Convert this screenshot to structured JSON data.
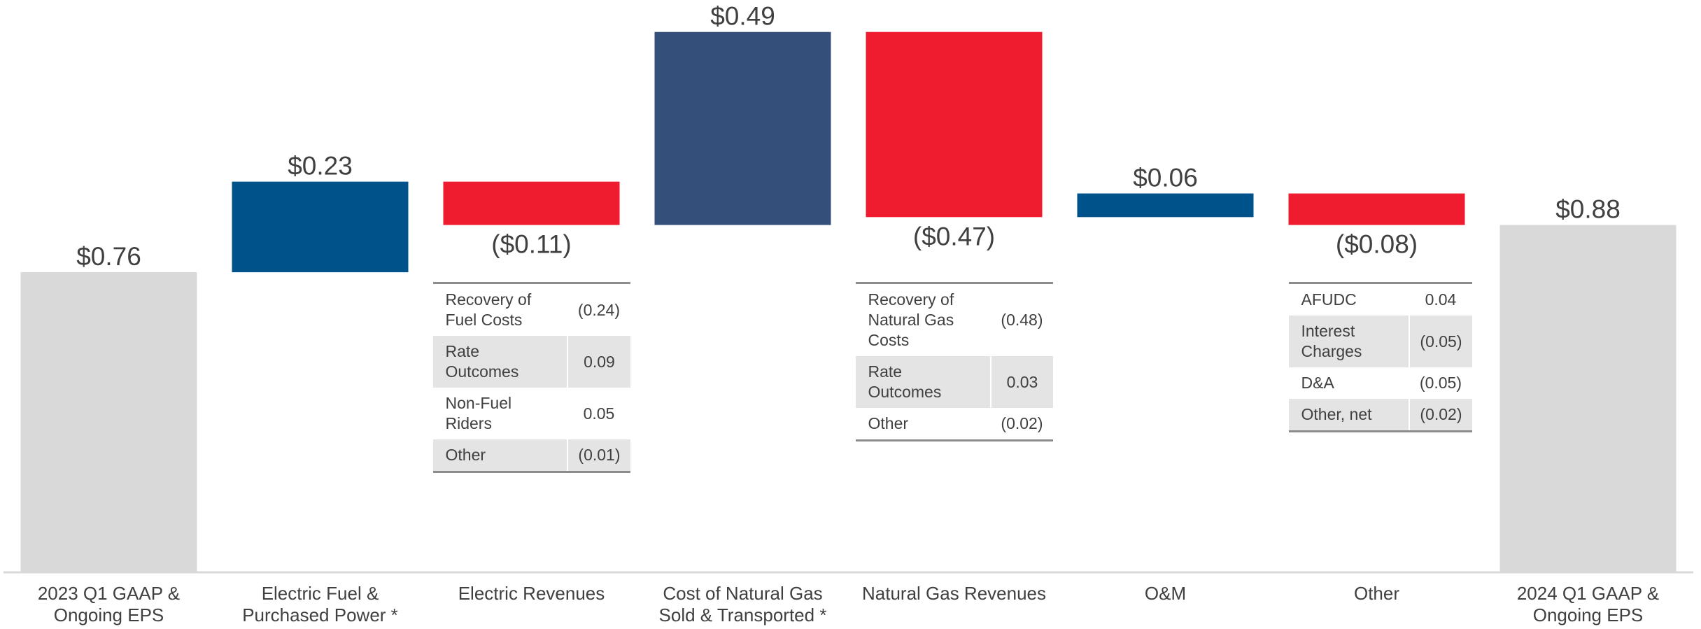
{
  "chart_data": {
    "type": "waterfall",
    "categories": [
      "2023 Q1 GAAP & Ongoing EPS",
      "Electric Fuel & Purchased Power *",
      "Electric Revenues",
      "Cost of Natural Gas Sold & Transported *",
      "Natural Gas Revenues",
      "O&M",
      "Other",
      "2024 Q1 GAAP & Ongoing EPS"
    ],
    "values": [
      0.76,
      0.23,
      -0.11,
      0.49,
      -0.47,
      0.06,
      -0.08,
      0.88
    ],
    "value_labels": [
      "$0.76",
      "$0.23",
      "($0.11)",
      "$0.49",
      "($0.47)",
      "$0.06",
      "($0.08)",
      "$0.88"
    ],
    "colors": [
      "#d9d9d9",
      "#00538a",
      "#ee1c2e",
      "#34507a",
      "#ee1c2e",
      "#00538a",
      "#ee1c2e",
      "#d9d9d9"
    ],
    "tables": [
      {
        "rows": [
          [
            "Recovery of Fuel Costs",
            "(0.24)"
          ],
          [
            "Rate Outcomes",
            "0.09"
          ],
          [
            "Non-Fuel Riders",
            "0.05"
          ],
          [
            "Other",
            "(0.01)"
          ]
        ]
      },
      {
        "rows": [
          [
            "Recovery of Natural Gas Costs",
            "(0.48)"
          ],
          [
            "Rate Outcomes",
            "0.03"
          ],
          [
            "Other",
            "(0.02)"
          ]
        ]
      },
      {
        "rows": [
          [
            "AFUDC",
            "0.04"
          ],
          [
            "Interest Charges",
            "(0.05)"
          ],
          [
            "D&A",
            "(0.05)"
          ],
          [
            "Other, net",
            "(0.02)"
          ]
        ]
      }
    ]
  }
}
